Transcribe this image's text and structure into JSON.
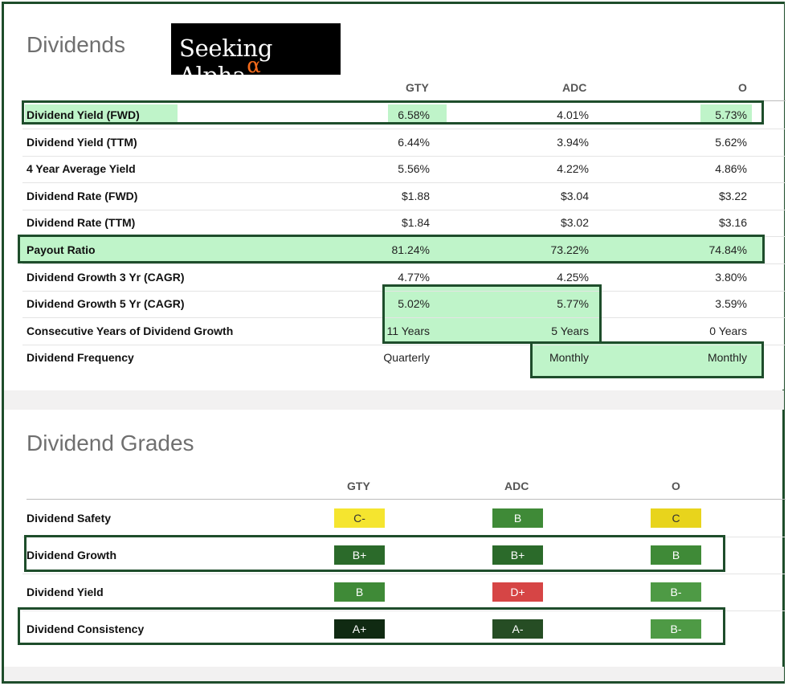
{
  "dividends": {
    "title": "Dividends",
    "logo": {
      "text": "Seeking Alpha",
      "symbol": "α"
    },
    "columns": [
      "GTY",
      "ADC",
      "O"
    ],
    "rows": [
      {
        "label": "Dividend Yield (FWD)",
        "values": [
          "6.58%",
          "4.01%",
          "5.73%"
        ]
      },
      {
        "label": "Dividend Yield (TTM)",
        "values": [
          "6.44%",
          "3.94%",
          "5.62%"
        ]
      },
      {
        "label": "4 Year Average Yield",
        "values": [
          "5.56%",
          "4.22%",
          "4.86%"
        ]
      },
      {
        "label": "Dividend Rate (FWD)",
        "values": [
          "$1.88",
          "$3.04",
          "$3.22"
        ]
      },
      {
        "label": "Dividend Rate (TTM)",
        "values": [
          "$1.84",
          "$3.02",
          "$3.16"
        ]
      },
      {
        "label": "Payout Ratio",
        "values": [
          "81.24%",
          "73.22%",
          "74.84%"
        ]
      },
      {
        "label": "Dividend Growth 3 Yr (CAGR)",
        "values": [
          "4.77%",
          "4.25%",
          "3.80%"
        ]
      },
      {
        "label": "Dividend Growth 5 Yr (CAGR)",
        "values": [
          "5.02%",
          "5.77%",
          "3.59%"
        ]
      },
      {
        "label": "Consecutive Years of Dividend Growth",
        "values": [
          "11 Years",
          "5 Years",
          "0 Years"
        ]
      },
      {
        "label": "Dividend Frequency",
        "values": [
          "Quarterly",
          "Monthly",
          "Monthly"
        ]
      }
    ]
  },
  "grades": {
    "title": "Dividend Grades",
    "columns": [
      "GTY",
      "ADC",
      "O"
    ],
    "rows": [
      {
        "label": "Dividend Safety",
        "grades": [
          {
            "grade": "C-",
            "bg": "#f5e52f",
            "fg": "#333"
          },
          {
            "grade": "B",
            "bg": "#3f8a37",
            "fg": "#fff"
          },
          {
            "grade": "C",
            "bg": "#e8d41c",
            "fg": "#333"
          }
        ]
      },
      {
        "label": "Dividend Growth",
        "grades": [
          {
            "grade": "B+",
            "bg": "#2b6a2a",
            "fg": "#fff"
          },
          {
            "grade": "B+",
            "bg": "#2b6a2a",
            "fg": "#fff"
          },
          {
            "grade": "B",
            "bg": "#3f8a37",
            "fg": "#fff"
          }
        ]
      },
      {
        "label": "Dividend Yield",
        "grades": [
          {
            "grade": "B",
            "bg": "#3f8a37",
            "fg": "#fff"
          },
          {
            "grade": "D+",
            "bg": "#d64545",
            "fg": "#fff"
          },
          {
            "grade": "B-",
            "bg": "#4e9a45",
            "fg": "#fff"
          }
        ]
      },
      {
        "label": "Dividend Consistency",
        "grades": [
          {
            "grade": "A+",
            "bg": "#102a12",
            "fg": "#fff"
          },
          {
            "grade": "A-",
            "bg": "#264d24",
            "fg": "#fff"
          },
          {
            "grade": "B-",
            "bg": "#4e9a45",
            "fg": "#fff"
          }
        ]
      }
    ]
  },
  "colors": {
    "frame": "#1e4d2b",
    "highlight": "#bff4c9"
  }
}
